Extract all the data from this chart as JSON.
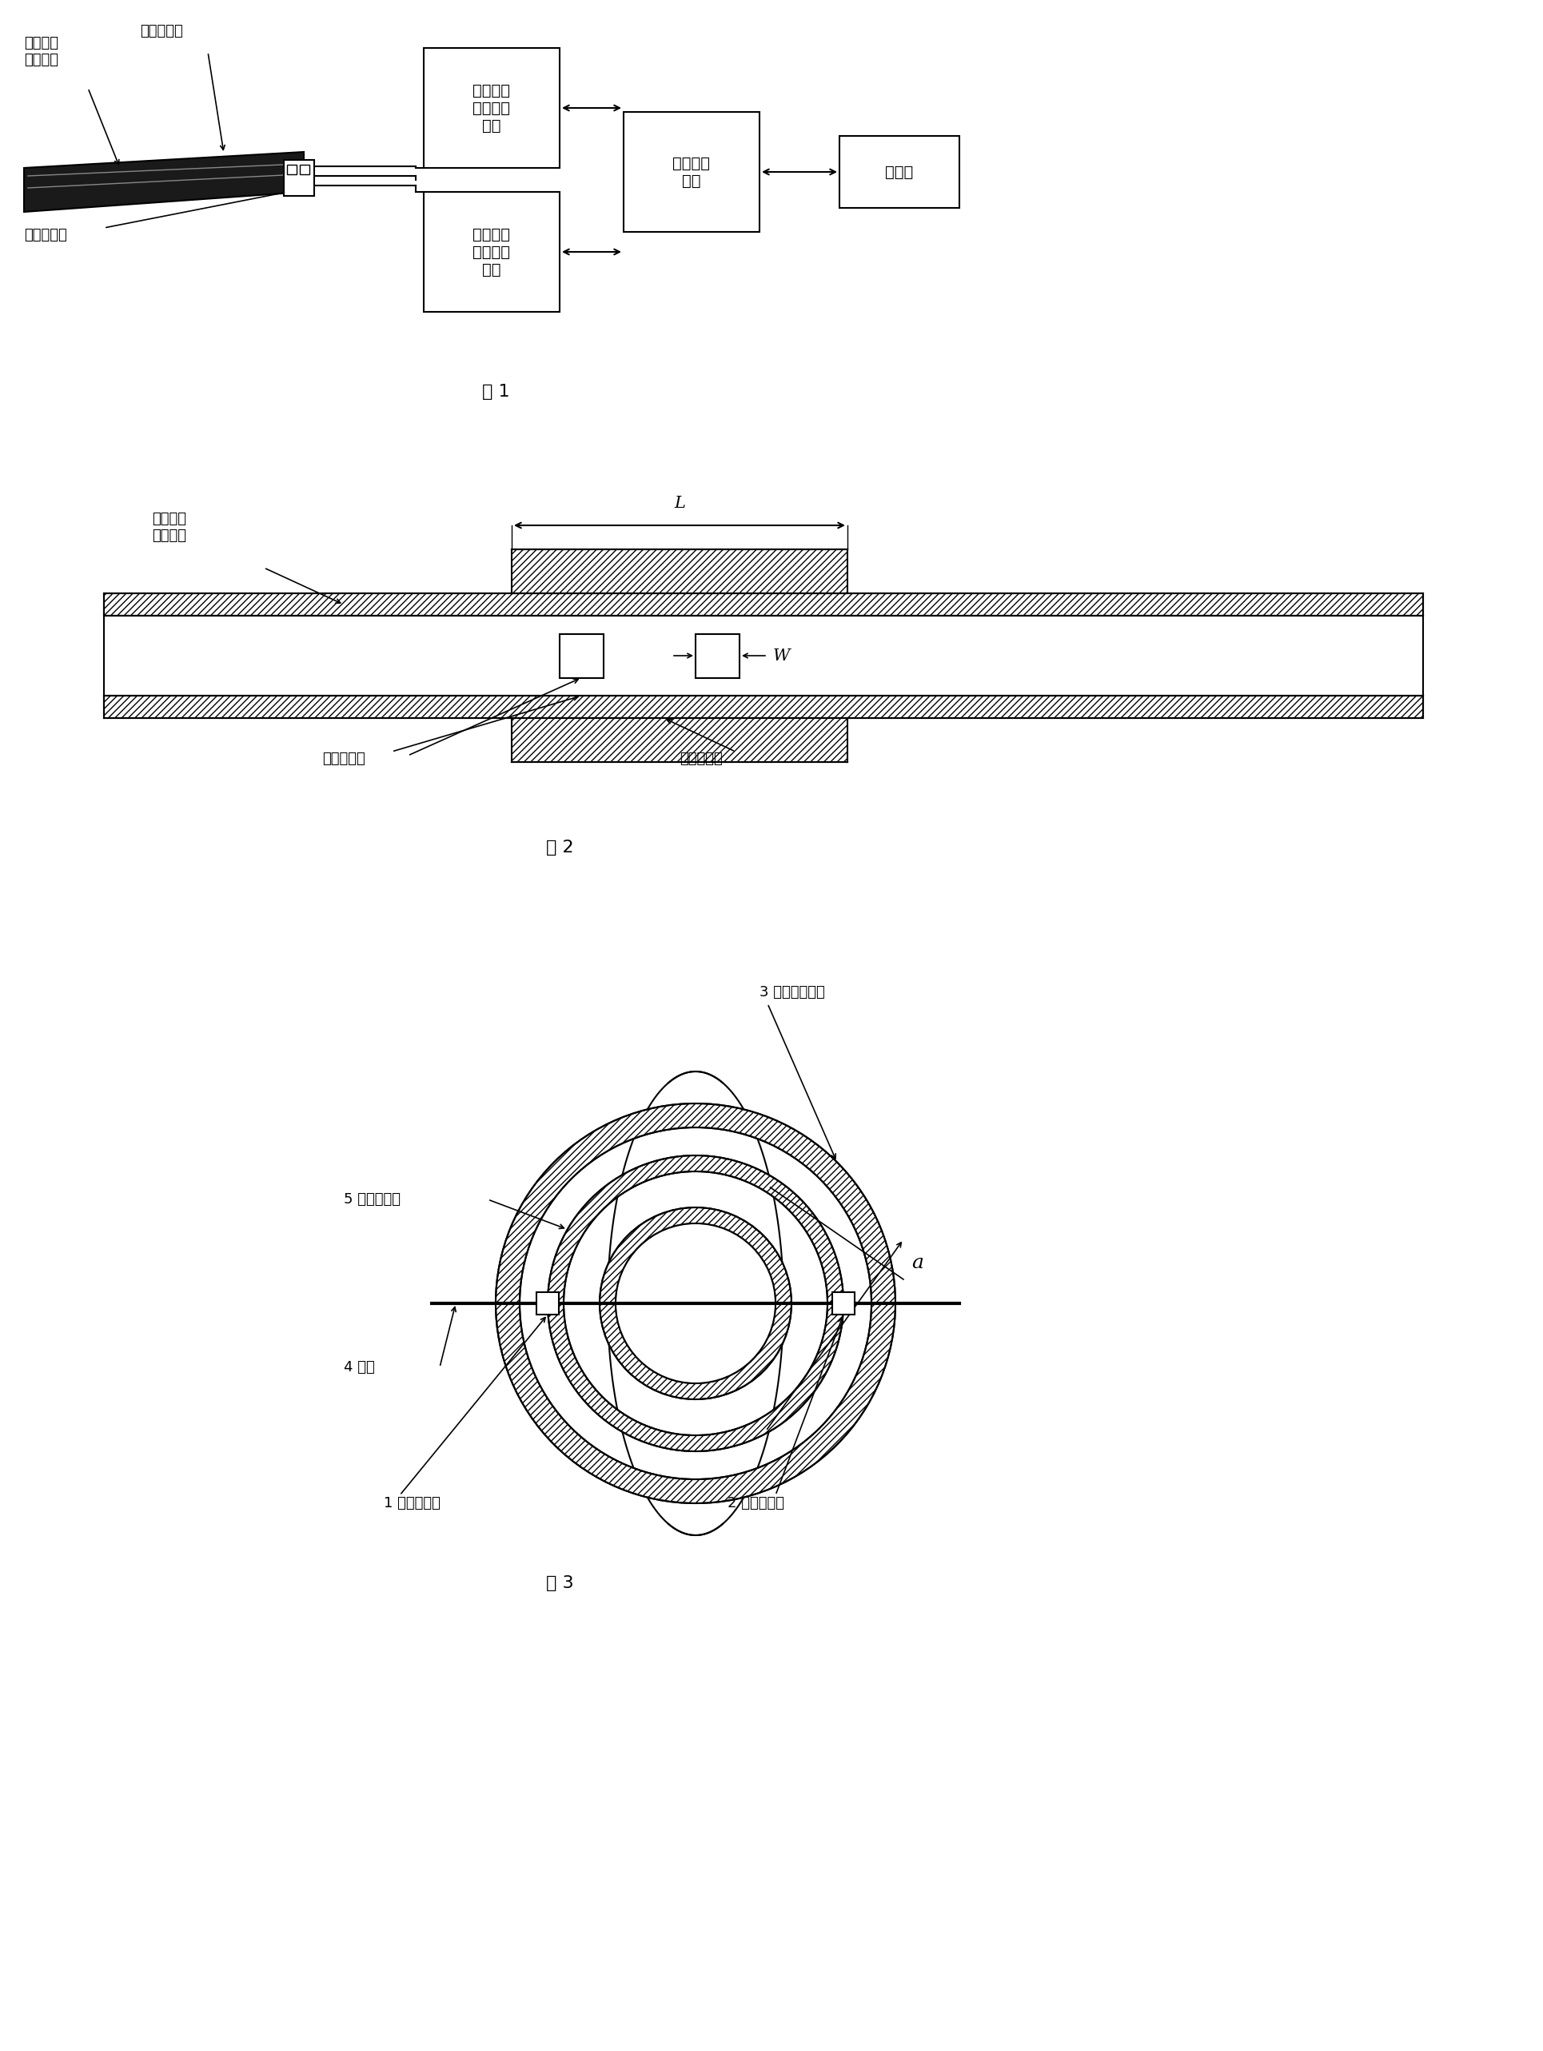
{
  "fig_width": 19.3,
  "fig_height": 25.65,
  "bg_color": "#ffffff",
  "line_color": "#000000",
  "fig1_label": "图 1",
  "fig2_label": "图 2",
  "fig3_label": "图 3",
  "labels": {
    "insulating_tube": "绝缘微型\n测量管道",
    "metal_shield": "金属屏蔽层",
    "cap_sensor": "电容传感器",
    "circuit1": "第一电容\n电压转换\n电路",
    "circuit2": "第二电容\n电压转换\n电路",
    "data_acq": "数据采集\n电路",
    "computer": "计算机",
    "fig2_tube": "绝缘微型\n测量管道",
    "fig2_sensor": "电容传感器",
    "fig2_shield": "金属屏蔽层",
    "fig3_label3": "3 测量管道外壁",
    "fig3_label5": "5 金属屏蔽层",
    "fig3_label4": "4 导线",
    "fig3_label1": "1 激励端电极",
    "fig3_label2": "2 检测端电极",
    "alpha": "a",
    "L_label": "L",
    "W_label": "W"
  }
}
